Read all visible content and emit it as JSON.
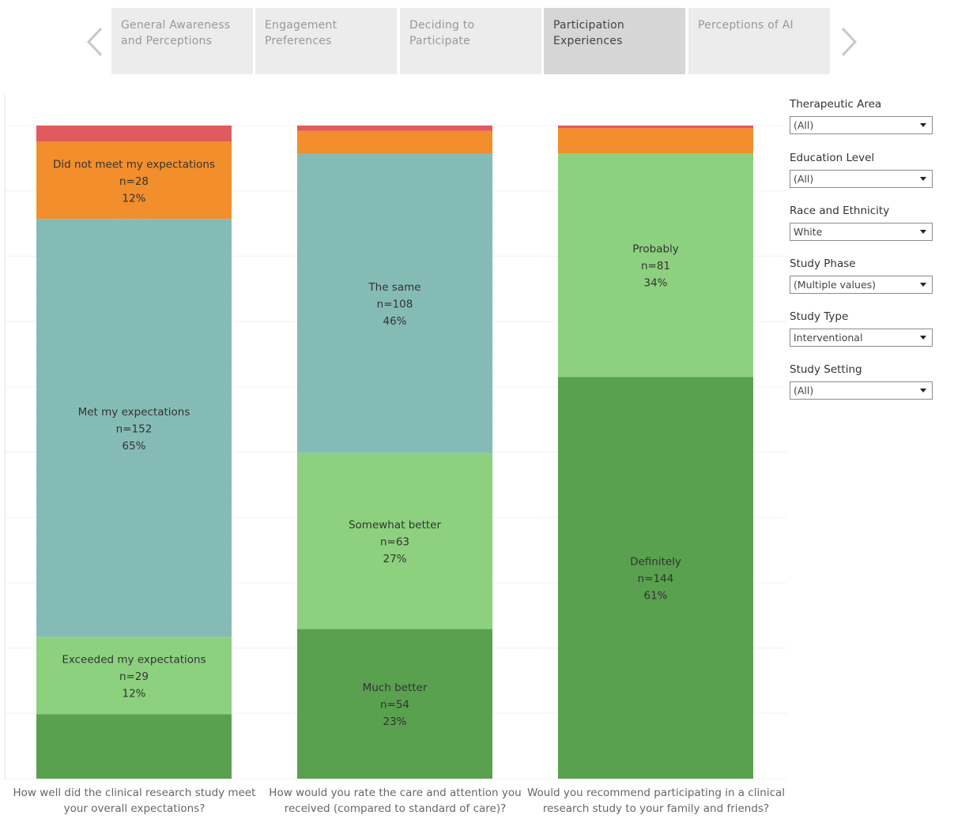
{
  "nav": {
    "tabs": [
      {
        "line1": "General Awareness",
        "line2": "and Perceptions"
      },
      {
        "line1": "Engagement",
        "line2": "Preferences"
      },
      {
        "line1": "Deciding to Participate",
        "line2": ""
      },
      {
        "line1": "Participation",
        "line2": "Experiences"
      },
      {
        "line1": "Perceptions of AI",
        "line2": ""
      }
    ],
    "active_index": 3,
    "prev_icon": "chevron-left-icon",
    "next_icon": "chevron-right-icon"
  },
  "filters": [
    {
      "title": "Therapeutic Area",
      "value": "(All)"
    },
    {
      "title": "Education Level",
      "value": "(All)"
    },
    {
      "title": "Race and Ethnicity",
      "value": "White"
    },
    {
      "title": "Study Phase",
      "value": "(Multiple values)"
    },
    {
      "title": "Study Type",
      "value": "Interventional"
    },
    {
      "title": "Study Setting",
      "value": "(All)"
    }
  ],
  "colors": {
    "red": "#e05a5f",
    "orange": "#f28e2b",
    "teal": "#86bcb6",
    "light_green": "#8dd17e",
    "dark_green": "#59a14f"
  },
  "chart_data": {
    "type": "bar",
    "stacked": true,
    "normalized": true,
    "grid": true,
    "bars": [
      {
        "question": "How well did the clinical research study meet your overall expectations?",
        "segments": [
          {
            "color": "dark_green",
            "n": 24,
            "pct": 0.1,
            "label": "",
            "count": "",
            "percent": ""
          },
          {
            "color": "light_green",
            "n": 29,
            "pct": 0.12,
            "label": "Exceeded my expectations",
            "count": "n=29",
            "percent": "12%"
          },
          {
            "color": "teal",
            "n": 152,
            "pct": 0.65,
            "label": "Met my expectations",
            "count": "n=152",
            "percent": "65%"
          },
          {
            "color": "orange",
            "n": 28,
            "pct": 0.12,
            "label": "Did not meet my expectations",
            "count": "n=28",
            "percent": "12%"
          },
          {
            "color": "red",
            "n": 6,
            "pct": 0.025,
            "label": "",
            "count": "",
            "percent": ""
          }
        ]
      },
      {
        "question": "How would you rate the care and attention you received (compared to standard of care)?",
        "segments": [
          {
            "color": "dark_green",
            "n": 54,
            "pct": 0.23,
            "label": "Much better",
            "count": "n=54",
            "percent": "23%"
          },
          {
            "color": "light_green",
            "n": 63,
            "pct": 0.27,
            "label": "Somewhat better",
            "count": "n=63",
            "percent": "27%"
          },
          {
            "color": "teal",
            "n": 108,
            "pct": 0.46,
            "label": "The same",
            "count": "n=108",
            "percent": "46%"
          },
          {
            "color": "orange",
            "n": 8,
            "pct": 0.035,
            "label": "",
            "count": "",
            "percent": ""
          },
          {
            "color": "red",
            "n": 2,
            "pct": 0.008,
            "label": "",
            "count": "",
            "percent": ""
          }
        ]
      },
      {
        "question": "Would you recommend participating in a clinical research study to your family and friends?",
        "segments": [
          {
            "color": "dark_green",
            "n": 144,
            "pct": 0.61,
            "label": "Definitely",
            "count": "n=144",
            "percent": "61%"
          },
          {
            "color": "light_green",
            "n": 81,
            "pct": 0.34,
            "label": "Probably",
            "count": "n=81",
            "percent": "34%"
          },
          {
            "color": "orange",
            "n": 9,
            "pct": 0.038,
            "label": "",
            "count": "",
            "percent": ""
          },
          {
            "color": "red",
            "n": 1,
            "pct": 0.004,
            "label": "",
            "count": "",
            "percent": ""
          }
        ]
      }
    ]
  }
}
